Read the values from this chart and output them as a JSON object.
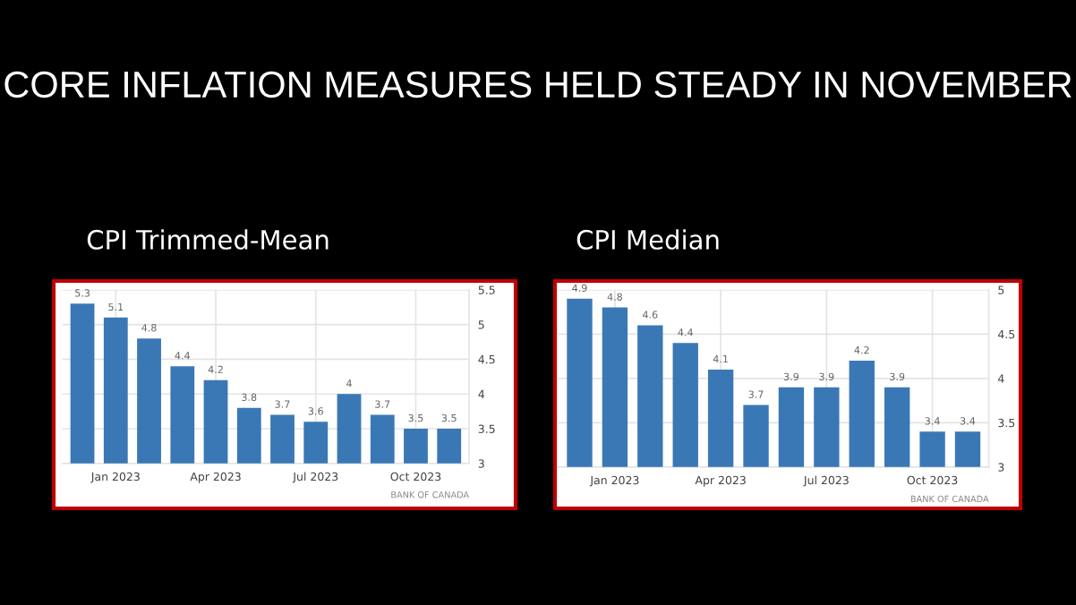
{
  "chart_data": [
    {
      "type": "bar",
      "title": "CORE INFLATION MEASURES HELD STEADY IN NOVEMBER",
      "subtitle": "CPI Trimmed-Mean",
      "categories": [
        null,
        "Jan 2023",
        null,
        null,
        "Apr 2023",
        null,
        null,
        "Jul 2023",
        null,
        null,
        "Oct 2023",
        null
      ],
      "values": [
        5.3,
        5.1,
        4.8,
        4.4,
        4.2,
        3.8,
        3.7,
        3.6,
        4.0,
        3.7,
        3.5,
        3.5
      ],
      "value_labels": [
        "5.3",
        "5.1",
        "4.8",
        "4.4",
        "4.2",
        "3.8",
        "3.7",
        "3.6",
        "4",
        "3.7",
        "3.5",
        "3.5"
      ],
      "color": "#3a78b5",
      "ylim": [
        3,
        5.5
      ],
      "yticks": [
        3,
        3.5,
        4,
        4.5,
        5,
        5.5
      ],
      "grid": true,
      "annotations": [
        "BANK OF CANADA"
      ]
    },
    {
      "type": "bar",
      "subtitle": "CPI Median",
      "categories": [
        null,
        "Jan 2023",
        null,
        null,
        "Apr 2023",
        null,
        null,
        "Jul 2023",
        null,
        null,
        "Oct 2023",
        null
      ],
      "values": [
        4.9,
        4.8,
        4.6,
        4.4,
        4.1,
        3.7,
        3.9,
        3.9,
        4.2,
        3.9,
        3.4,
        3.4
      ],
      "data_labels": true,
      "color": "#3a78b5",
      "ylim": [
        3,
        5
      ],
      "yticks": [
        3,
        3.5,
        4,
        4.5,
        5
      ],
      "grid": true,
      "annotations": [
        "BANK OF CANADA"
      ]
    }
  ]
}
